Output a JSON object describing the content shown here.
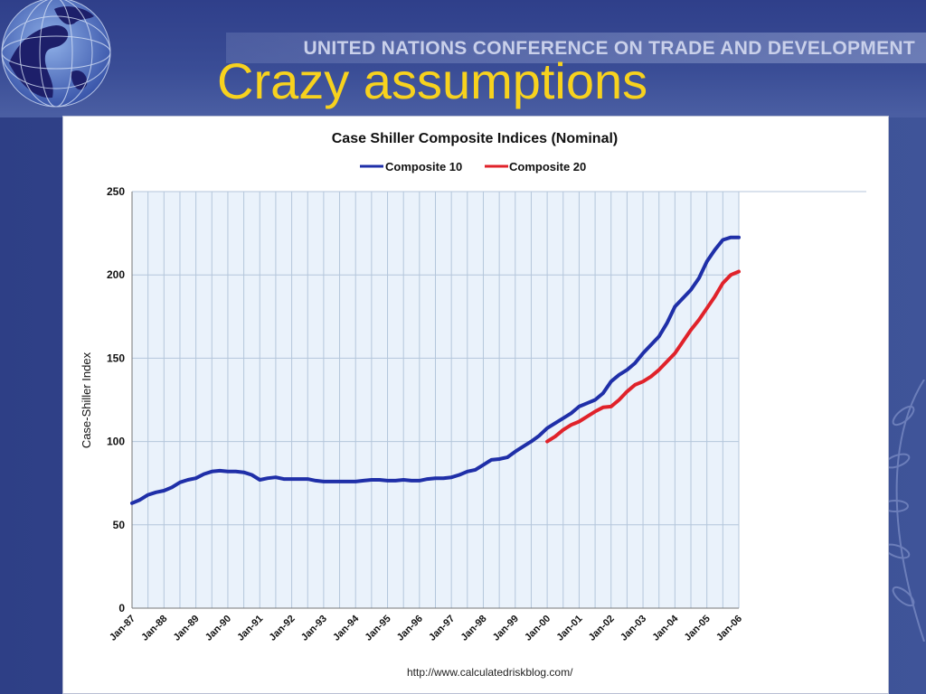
{
  "slide": {
    "org_name": "UNITED NATIONS CONFERENCE ON TRADE AND DEVELOPMENT",
    "title": "Crazy assumptions"
  },
  "colors": {
    "title": "#f7d21e",
    "composite10": "#1f2fa8",
    "composite20": "#e0222a",
    "plot_bg": "#eaf2fb",
    "grid": "#b4c6db"
  },
  "chart_data": {
    "type": "line",
    "title": "Case Shiller Composite Indices (Nominal)",
    "xlabel": "",
    "ylabel": "Case-Shiller Index",
    "ylim": [
      0,
      250
    ],
    "yticks": [
      0,
      50,
      100,
      150,
      200,
      250
    ],
    "xlim": [
      1987,
      2006
    ],
    "xticks": [
      "Jan-87",
      "Jan-88",
      "Jan-89",
      "Jan-90",
      "Jan-91",
      "Jan-92",
      "Jan-93",
      "Jan-94",
      "Jan-95",
      "Jan-96",
      "Jan-97",
      "Jan-98",
      "Jan-99",
      "Jan-00",
      "Jan-01",
      "Jan-02",
      "Jan-03",
      "Jan-04",
      "Jan-05",
      "Jan-06"
    ],
    "grid": true,
    "legend": "top",
    "source": "http://www.calculatedriskblog.com/",
    "series": [
      {
        "name": "Composite 10",
        "color": "#1f2fa8",
        "x": [
          1987.0,
          1987.25,
          1987.5,
          1987.75,
          1988.0,
          1988.25,
          1988.5,
          1988.75,
          1989.0,
          1989.25,
          1989.5,
          1989.75,
          1990.0,
          1990.25,
          1990.5,
          1990.75,
          1991.0,
          1991.25,
          1991.5,
          1991.75,
          1992.0,
          1992.25,
          1992.5,
          1992.75,
          1993.0,
          1993.25,
          1993.5,
          1993.75,
          1994.0,
          1994.25,
          1994.5,
          1994.75,
          1995.0,
          1995.25,
          1995.5,
          1995.75,
          1996.0,
          1996.25,
          1996.5,
          1996.75,
          1997.0,
          1997.25,
          1997.5,
          1997.75,
          1998.0,
          1998.25,
          1998.5,
          1998.75,
          1999.0,
          1999.25,
          1999.5,
          1999.75,
          2000.0,
          2000.25,
          2000.5,
          2000.75,
          2001.0,
          2001.25,
          2001.5,
          2001.75,
          2002.0,
          2002.25,
          2002.5,
          2002.75,
          2003.0,
          2003.25,
          2003.5,
          2003.75,
          2004.0,
          2004.25,
          2004.5,
          2004.75,
          2005.0,
          2005.25,
          2005.5,
          2005.75,
          2006.0
        ],
        "y": [
          63,
          65,
          68,
          69.5,
          70.5,
          72.5,
          75.5,
          77,
          78,
          80.5,
          82,
          82.5,
          82,
          82,
          81.5,
          80,
          77,
          78,
          78.5,
          77.5,
          77.5,
          77.5,
          77.5,
          76.5,
          76,
          76,
          76,
          76,
          76,
          76.5,
          77,
          77,
          76.5,
          76.5,
          77,
          76.5,
          76.5,
          77.5,
          78,
          78,
          78.5,
          80,
          82,
          83,
          86,
          89,
          89.5,
          90.5,
          94,
          97,
          100,
          103.5,
          108,
          111,
          114,
          117,
          121,
          123,
          125,
          129,
          136,
          140,
          143,
          147,
          153,
          158,
          163,
          171,
          181,
          186,
          191,
          198,
          208,
          215,
          221,
          222.5,
          222.5
        ]
      },
      {
        "name": "Composite 20",
        "color": "#e0222a",
        "x": [
          2000.0,
          2000.25,
          2000.5,
          2000.75,
          2001.0,
          2001.25,
          2001.5,
          2001.75,
          2002.0,
          2002.25,
          2002.5,
          2002.75,
          2003.0,
          2003.25,
          2003.5,
          2003.75,
          2004.0,
          2004.25,
          2004.5,
          2004.75,
          2005.0,
          2005.25,
          2005.5,
          2005.75,
          2006.0
        ],
        "y": [
          100,
          103,
          107,
          110,
          112,
          115,
          118,
          120.5,
          121,
          125,
          130,
          134,
          136,
          139,
          143,
          148,
          153,
          160,
          167,
          173,
          180,
          187,
          195,
          200,
          202
        ]
      }
    ]
  }
}
